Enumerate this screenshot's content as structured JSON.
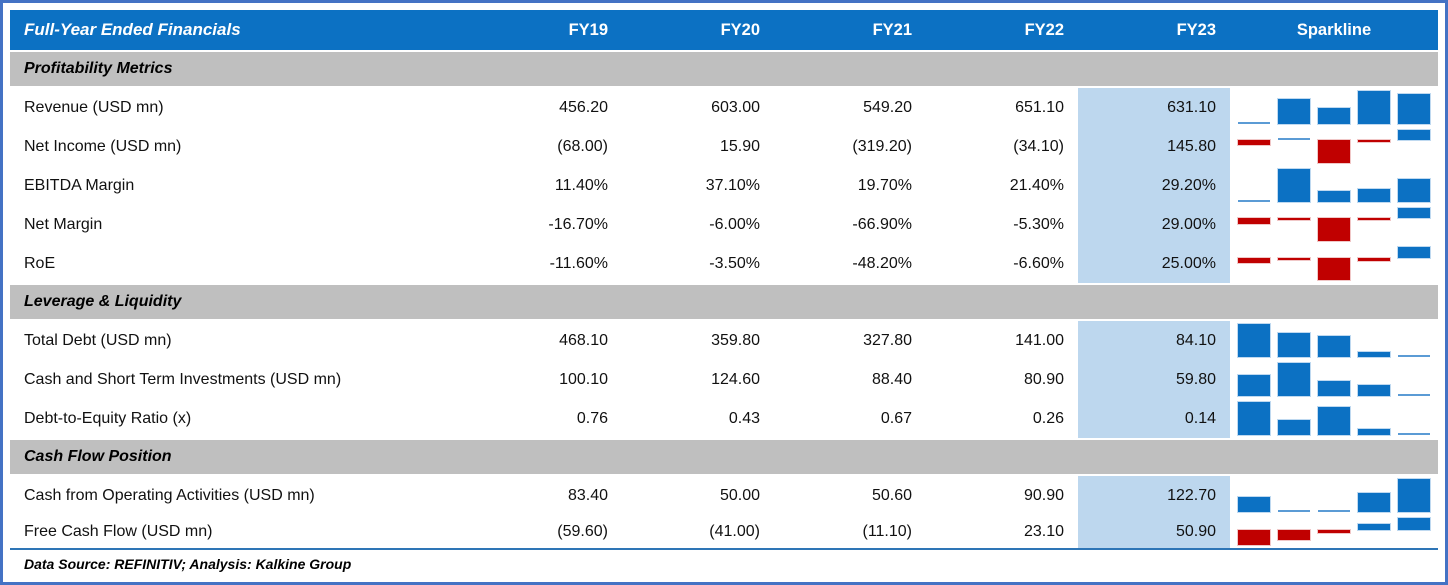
{
  "table": {
    "header": {
      "title": "Full-Year Ended Financials",
      "columns": [
        "FY19",
        "FY20",
        "FY21",
        "FY22",
        "FY23"
      ],
      "sparkline_label": "Sparkline"
    },
    "sections": [
      {
        "title": "Profitability Metrics",
        "rows": [
          {
            "label": "Revenue (USD mn)",
            "display": [
              "456.20",
              "603.00",
              "549.20",
              "651.10",
              "631.10"
            ]
          },
          {
            "label": "Net Income (USD mn)",
            "display": [
              "(68.00)",
              "15.90",
              "(319.20)",
              "(34.10)",
              "145.80"
            ]
          },
          {
            "label": "EBITDA Margin",
            "display": [
              "11.40%",
              "37.10%",
              "19.70%",
              "21.40%",
              "29.20%"
            ]
          },
          {
            "label": "Net Margin",
            "display": [
              "-16.70%",
              "-6.00%",
              "-66.90%",
              "-5.30%",
              "29.00%"
            ]
          },
          {
            "label": "RoE",
            "display": [
              "-11.60%",
              "-3.50%",
              "-48.20%",
              "-6.60%",
              "25.00%"
            ]
          }
        ]
      },
      {
        "title": "Leverage & Liquidity",
        "rows": [
          {
            "label": "Total Debt (USD mn)",
            "display": [
              "468.10",
              "359.80",
              "327.80",
              "141.00",
              "84.10"
            ]
          },
          {
            "label": "Cash and Short Term Investments (USD mn)",
            "display": [
              "100.10",
              "124.60",
              "88.40",
              "80.90",
              "59.80"
            ]
          },
          {
            "label": "Debt-to-Equity Ratio (x)",
            "display": [
              "0.76",
              "0.43",
              "0.67",
              "0.26",
              "0.14"
            ]
          }
        ]
      },
      {
        "title": "Cash Flow Position",
        "rows": [
          {
            "label": "Cash from Operating Activities (USD mn)",
            "display": [
              "83.40",
              "50.00",
              "50.60",
              "90.90",
              "122.70"
            ]
          },
          {
            "label": "Free Cash Flow (USD mn)",
            "display": [
              "(59.60)",
              "(41.00)",
              "(11.10)",
              "23.10",
              "50.90"
            ]
          }
        ]
      }
    ],
    "footer": {
      "text": "Data Source: REFINITIV; Analysis: Kalkine Group"
    }
  },
  "colors": {
    "header_bg": "#0C71C3",
    "header_text": "#FFFFFF",
    "section_bg": "#BFBFBF",
    "fy23_highlight_bg": "#BDD7EE",
    "frame_border": "#4472C4",
    "footer_rule": "#2E75B6",
    "spark_positive": "#0C71C3",
    "spark_negative": "#C00000"
  },
  "chart_data": {
    "type": "table",
    "title": "Full-Year Ended Financials",
    "categories": [
      "FY19",
      "FY20",
      "FY21",
      "FY22",
      "FY23"
    ],
    "highlighted_category": "FY23",
    "series": [
      {
        "name": "Revenue (USD mn)",
        "section": "Profitability Metrics",
        "values": [
          456.2,
          603.0,
          549.2,
          651.1,
          631.1
        ]
      },
      {
        "name": "Net Income (USD mn)",
        "section": "Profitability Metrics",
        "values": [
          -68.0,
          15.9,
          -319.2,
          -34.1,
          145.8
        ]
      },
      {
        "name": "EBITDA Margin (%)",
        "section": "Profitability Metrics",
        "values": [
          11.4,
          37.1,
          19.7,
          21.4,
          29.2
        ]
      },
      {
        "name": "Net Margin (%)",
        "section": "Profitability Metrics",
        "values": [
          -16.7,
          -6.0,
          -66.9,
          -5.3,
          29.0
        ]
      },
      {
        "name": "RoE (%)",
        "section": "Profitability Metrics",
        "values": [
          -11.6,
          -3.5,
          -48.2,
          -6.6,
          25.0
        ]
      },
      {
        "name": "Total Debt (USD mn)",
        "section": "Leverage & Liquidity",
        "values": [
          468.1,
          359.8,
          327.8,
          141.0,
          84.1
        ]
      },
      {
        "name": "Cash and Short Term Investments (USD mn)",
        "section": "Leverage & Liquidity",
        "values": [
          100.1,
          124.6,
          88.4,
          80.9,
          59.8
        ]
      },
      {
        "name": "Debt-to-Equity Ratio (x)",
        "section": "Leverage & Liquidity",
        "values": [
          0.76,
          0.43,
          0.67,
          0.26,
          0.14
        ]
      },
      {
        "name": "Cash from Operating Activities (USD mn)",
        "section": "Cash Flow Position",
        "values": [
          83.4,
          50.0,
          50.6,
          90.9,
          122.7
        ]
      },
      {
        "name": "Free Cash Flow (USD mn)",
        "section": "Cash Flow Position",
        "values": [
          -59.6,
          -41.0,
          -11.1,
          23.1,
          50.9
        ]
      }
    ],
    "sparkline_style": {
      "type": "column",
      "positive_color": "#0C71C3",
      "negative_color": "#C00000",
      "scaling": "per-row auto min-max; negatives below zero axis"
    }
  }
}
